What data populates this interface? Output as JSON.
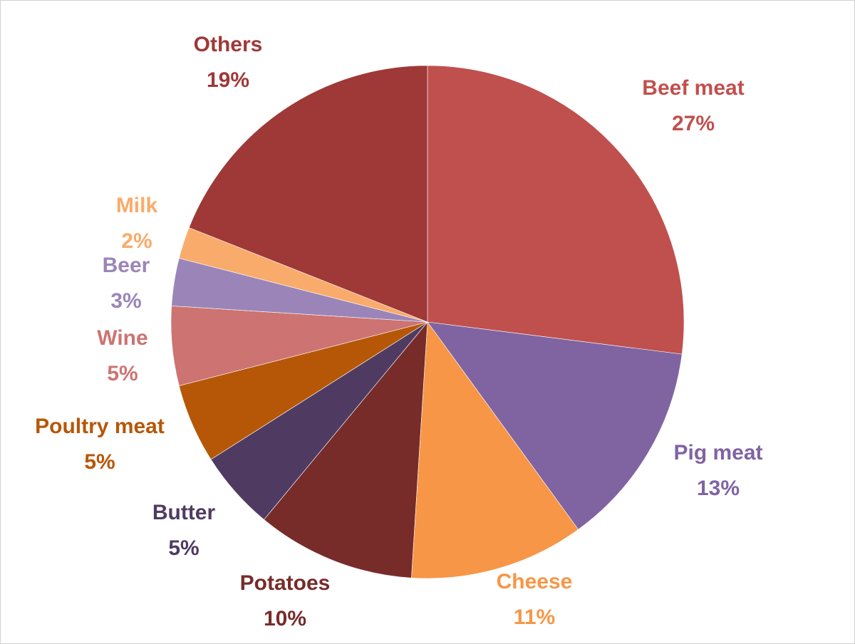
{
  "chart_data": {
    "type": "pie",
    "title": "",
    "start": "12 o'clock, clockwise",
    "slices": [
      {
        "label": "Beef meat",
        "value": 27,
        "display": "27%",
        "color": "#C0504D",
        "text_color": "#C0504D"
      },
      {
        "label": "Pig meat",
        "value": 13,
        "display": "13%",
        "color": "#8064A2",
        "text_color": "#8064A2"
      },
      {
        "label": "Cheese",
        "value": 11,
        "display": "11%",
        "color": "#F79646",
        "text_color": "#F79646"
      },
      {
        "label": "Potatoes",
        "value": 10,
        "display": "10%",
        "color": "#772C2A",
        "text_color": "#772C2A"
      },
      {
        "label": "Butter",
        "value": 5,
        "display": "5%",
        "color": "#4F3B62",
        "text_color": "#4F3B62"
      },
      {
        "label": "Poultry meat",
        "value": 5,
        "display": "5%",
        "color": "#B65708",
        "text_color": "#B65708"
      },
      {
        "label": "Wine",
        "value": 5,
        "display": "5%",
        "color": "#CD7371",
        "text_color": "#CD7371"
      },
      {
        "label": "Beer",
        "value": 3,
        "display": "3%",
        "color": "#9B85B8",
        "text_color": "#9B85B8"
      },
      {
        "label": "Milk",
        "value": 2,
        "display": "2%",
        "color": "#F9AB6B",
        "text_color": "#F9AB6B"
      },
      {
        "label": "Others",
        "value": 19,
        "display": "19%",
        "color": "#9E3937",
        "text_color": "#9E3937"
      }
    ]
  }
}
